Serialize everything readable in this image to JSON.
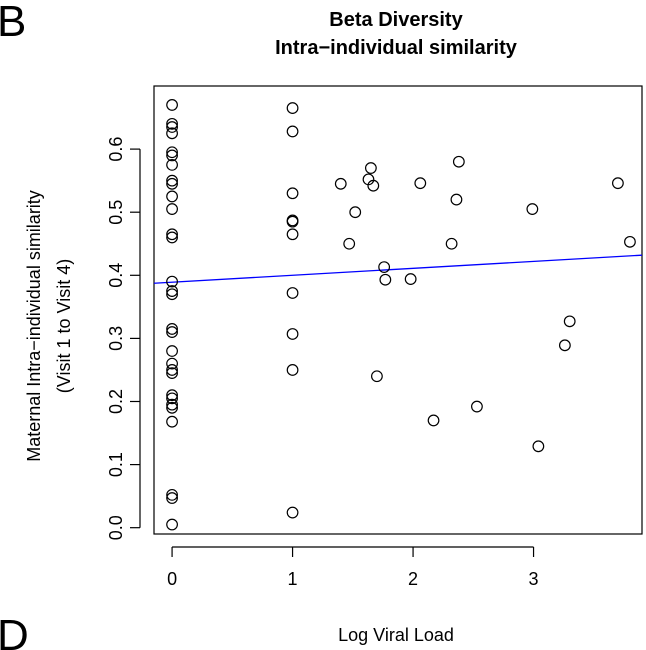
{
  "panel": {
    "letter_top": "B",
    "letter_bottom": "D"
  },
  "chart_data": {
    "type": "scatter",
    "title": "Beta Diversity",
    "subtitle": "Intra−individual similarity",
    "xlabel": "Log Viral Load",
    "ylabel_line1": "Maternal Intra−individual similarity",
    "ylabel_line2": "(Visit 1 to Visit 4)",
    "xlim": [
      -0.15,
      3.9
    ],
    "ylim": [
      -0.01,
      0.7
    ],
    "x_ticks": [
      0,
      1,
      2,
      3
    ],
    "x_tick_labels": [
      "0",
      "1",
      "2",
      "3"
    ],
    "y_ticks": [
      0.0,
      0.1,
      0.2,
      0.3,
      0.4,
      0.5,
      0.6
    ],
    "y_tick_labels": [
      "0.0",
      "0.1",
      "0.2",
      "0.3",
      "0.4",
      "0.5",
      "0.6"
    ],
    "grid": false,
    "legend": "none",
    "points": [
      {
        "x": 0,
        "y": 0.67
      },
      {
        "x": 0,
        "y": 0.64
      },
      {
        "x": 0,
        "y": 0.635
      },
      {
        "x": 0,
        "y": 0.625
      },
      {
        "x": 0,
        "y": 0.595
      },
      {
        "x": 0,
        "y": 0.59
      },
      {
        "x": 0,
        "y": 0.575
      },
      {
        "x": 0,
        "y": 0.55
      },
      {
        "x": 0,
        "y": 0.545
      },
      {
        "x": 0,
        "y": 0.525
      },
      {
        "x": 0,
        "y": 0.505
      },
      {
        "x": 0,
        "y": 0.465
      },
      {
        "x": 0,
        "y": 0.46
      },
      {
        "x": 0,
        "y": 0.39
      },
      {
        "x": 0,
        "y": 0.375
      },
      {
        "x": 0,
        "y": 0.37
      },
      {
        "x": 0,
        "y": 0.315
      },
      {
        "x": 0,
        "y": 0.31
      },
      {
        "x": 0,
        "y": 0.28
      },
      {
        "x": 0,
        "y": 0.26
      },
      {
        "x": 0,
        "y": 0.25
      },
      {
        "x": 0,
        "y": 0.245
      },
      {
        "x": 0,
        "y": 0.21
      },
      {
        "x": 0,
        "y": 0.205
      },
      {
        "x": 0,
        "y": 0.195
      },
      {
        "x": 0,
        "y": 0.19
      },
      {
        "x": 0,
        "y": 0.168
      },
      {
        "x": 0,
        "y": 0.052
      },
      {
        "x": 0,
        "y": 0.047
      },
      {
        "x": 0,
        "y": 0.005
      },
      {
        "x": 1,
        "y": 0.665
      },
      {
        "x": 1,
        "y": 0.628
      },
      {
        "x": 1,
        "y": 0.53
      },
      {
        "x": 1,
        "y": 0.487
      },
      {
        "x": 1,
        "y": 0.485
      },
      {
        "x": 1,
        "y": 0.465
      },
      {
        "x": 1,
        "y": 0.372
      },
      {
        "x": 1,
        "y": 0.307
      },
      {
        "x": 1,
        "y": 0.25
      },
      {
        "x": 1,
        "y": 0.024
      },
      {
        "x": 1.4,
        "y": 0.545
      },
      {
        "x": 1.47,
        "y": 0.45
      },
      {
        "x": 1.52,
        "y": 0.5
      },
      {
        "x": 1.63,
        "y": 0.552
      },
      {
        "x": 1.65,
        "y": 0.57
      },
      {
        "x": 1.67,
        "y": 0.542
      },
      {
        "x": 1.7,
        "y": 0.24
      },
      {
        "x": 1.76,
        "y": 0.413
      },
      {
        "x": 1.77,
        "y": 0.393
      },
      {
        "x": 1.98,
        "y": 0.394
      },
      {
        "x": 2.06,
        "y": 0.546
      },
      {
        "x": 2.17,
        "y": 0.17
      },
      {
        "x": 2.32,
        "y": 0.45
      },
      {
        "x": 2.36,
        "y": 0.52
      },
      {
        "x": 2.38,
        "y": 0.58
      },
      {
        "x": 2.53,
        "y": 0.192
      },
      {
        "x": 2.99,
        "y": 0.505
      },
      {
        "x": 3.04,
        "y": 0.129
      },
      {
        "x": 3.26,
        "y": 0.289
      },
      {
        "x": 3.3,
        "y": 0.327
      },
      {
        "x": 3.7,
        "y": 0.546
      },
      {
        "x": 3.8,
        "y": 0.453
      }
    ],
    "regression_line": {
      "intercept": 0.389,
      "slope": 0.011,
      "color": "#0000ff"
    }
  }
}
